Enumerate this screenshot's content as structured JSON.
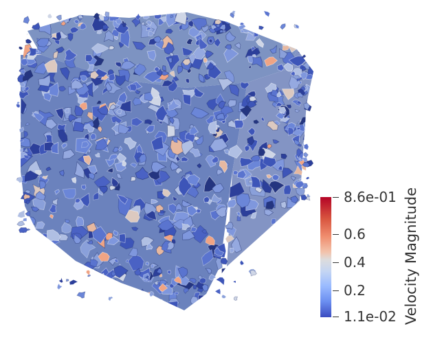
{
  "colorbar": {
    "title": "Velocity Magnitude",
    "ticks": [
      {
        "label": "8.6e-01",
        "value": 0.86
      },
      {
        "label": "0.6",
        "value": 0.6
      },
      {
        "label": "0.4",
        "value": 0.4
      },
      {
        "label": "0.2",
        "value": 0.2
      },
      {
        "label": "1.1e-02",
        "value": 0.011
      }
    ],
    "range": [
      0.011,
      0.86
    ],
    "colors": {
      "high": "#b40426",
      "mid": "#dddcdc",
      "low": "#3b4cc0"
    }
  }
}
